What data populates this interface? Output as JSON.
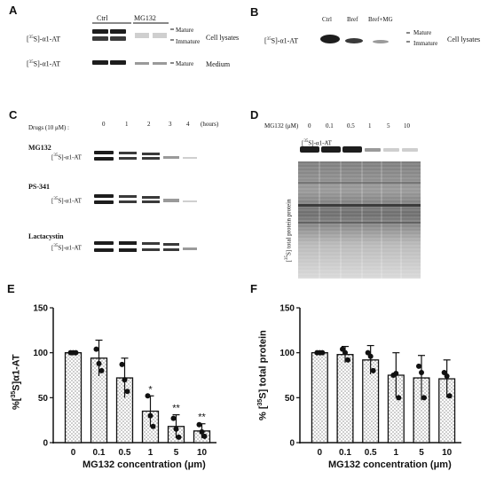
{
  "panels": {
    "A": {
      "label": "A",
      "headers": {
        "ctrl": "Ctrl",
        "mg": "MG132"
      },
      "row1_label_prefix": "[",
      "row1_label_sup": "35",
      "row1_label_suffix": "S]-α1-AT",
      "row2_label_prefix": "[",
      "row2_label_sup": "35",
      "row2_label_suffix": "S]-α1-AT",
      "mature": "Mature",
      "immature": "Immature",
      "cell_lysates": "Cell lysates",
      "mature2": "Mature",
      "medium": "Medium"
    },
    "B": {
      "label": "B",
      "lanes": [
        "Ctrl",
        "Bref",
        "Bref+MG"
      ],
      "row_label_prefix": "[",
      "row_label_sup": "35",
      "row_label_suffix": "S]-α1-AT",
      "mature": "Mature",
      "immature": "Immature",
      "cell_lysates": "Cell lysates"
    },
    "C": {
      "label": "C",
      "drugs_label": "Drugs (10 μM) :",
      "timepoints": [
        "0",
        "1",
        "2",
        "3",
        "4"
      ],
      "hours": "(hours)",
      "drugs": [
        "MG132",
        "PS-341",
        "Lactacystin"
      ],
      "row_label_prefix": "[",
      "row_label_sup": "35",
      "row_label_suffix": "S]-α1-AT"
    },
    "D": {
      "label": "D",
      "mg_label": "MG132 (μM)",
      "concs": [
        "0",
        "0.1",
        "0.5",
        "1",
        "5",
        "10"
      ],
      "row_label_prefix": "[",
      "row_label_sup": "35",
      "row_label_suffix": "S]-α1-AT",
      "total_prefix": "[",
      "total_sup": "35",
      "total_suffix": "S] total protein protein"
    },
    "E": {
      "label": "E",
      "ylabel_prefix": "%[",
      "ylabel_sup": "35",
      "ylabel_suffix": "S]α1-AT",
      "xlabel": "MG132 concentration (μm)"
    },
    "F": {
      "label": "F",
      "ylabel_prefix": "% [",
      "ylabel_sup": "35",
      "ylabel_suffix": "S] total protein",
      "xlabel": "MG132 concentration (μm)"
    }
  },
  "chart_data": [
    {
      "type": "bar",
      "panel": "E",
      "categories": [
        "0",
        "0.1",
        "0.5",
        "1",
        "5",
        "10"
      ],
      "values": [
        100,
        94,
        72,
        35,
        18,
        13
      ],
      "errors": [
        0,
        20,
        22,
        17,
        13,
        8
      ],
      "points": [
        [
          100,
          100,
          100
        ],
        [
          104,
          88,
          80
        ],
        [
          87,
          70,
          57
        ],
        [
          52,
          30,
          18
        ],
        [
          27,
          15,
          6
        ],
        [
          20,
          12,
          7
        ]
      ],
      "significance": [
        "",
        "",
        "",
        "*",
        "**",
        "**"
      ],
      "xlabel": "MG132 concentration (μm)",
      "ylabel": "%[35S]α1-AT",
      "ylim": [
        0,
        150
      ],
      "yticks": [
        "0",
        "50",
        "100",
        "150"
      ]
    },
    {
      "type": "bar",
      "panel": "F",
      "categories": [
        "0",
        "0.1",
        "0.5",
        "1",
        "5",
        "10"
      ],
      "values": [
        100,
        98,
        92,
        75,
        72,
        71
      ],
      "errors": [
        0,
        9,
        16,
        25,
        25,
        21
      ],
      "points": [
        [
          100,
          100,
          100
        ],
        [
          104,
          100,
          92
        ],
        [
          100,
          96,
          80
        ],
        [
          75,
          77,
          50
        ],
        [
          85,
          78,
          50
        ],
        [
          78,
          74,
          52
        ]
      ],
      "significance": [
        "",
        "",
        "",
        "",
        "",
        ""
      ],
      "xlabel": "MG132 concentration (μm)",
      "ylabel": "% [35S] total protein",
      "ylim": [
        0,
        150
      ],
      "yticks": [
        "0",
        "50",
        "100",
        "150"
      ]
    }
  ]
}
